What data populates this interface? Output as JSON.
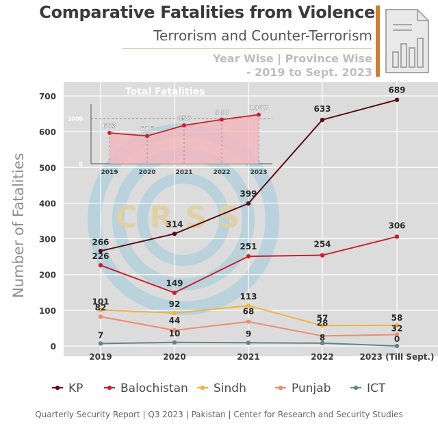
{
  "header": {
    "title": "Comparative Fatalities from Violence",
    "subtitle": "Terrorism and Counter-Terrorism",
    "scope_line1": "Year Wise | Province Wise",
    "scope_line2": "- 2019 to Sept. 2023"
  },
  "footer": {
    "text": "Quarterly Security Report | Q3 2023 | Pakistan | Center for Research and Security Studies"
  },
  "watermark": {
    "text": "CRSS"
  },
  "chart_data": [
    {
      "type": "line",
      "ylabel": "Number of Fatalities",
      "categories": [
        "2019",
        "2020",
        "2021",
        "2022",
        "2023 (Till Sept.)"
      ],
      "ylim": [
        0,
        700
      ],
      "yticks": [
        0,
        100,
        200,
        300,
        400,
        500,
        600,
        700
      ],
      "grid": true,
      "legend_position": "bottom",
      "series": [
        {
          "name": "KP",
          "color": "#5a0f14",
          "values": [
            266,
            314,
            399,
            633,
            689
          ]
        },
        {
          "name": "Balochistan",
          "color": "#cc1f2e",
          "values": [
            226,
            149,
            251,
            254,
            306
          ]
        },
        {
          "name": "Sindh",
          "color": "#f2b23c",
          "values": [
            101,
            92,
            113,
            57,
            58
          ]
        },
        {
          "name": "Punjab",
          "color": "#f08a72",
          "values": [
            82,
            44,
            68,
            28,
            32
          ]
        },
        {
          "name": "ICT",
          "color": "#5d878c",
          "values": [
            7,
            10,
            9,
            8,
            0
          ]
        }
      ]
    },
    {
      "type": "area",
      "title": "Total Fatalities",
      "categories": [
        "2019",
        "2020",
        "2021",
        "2022",
        "2023"
      ],
      "values": [
        683,
        616,
        850,
        980,
        1087
      ],
      "ylim": [
        0,
        1200
      ],
      "yticks": [
        0,
        1000
      ],
      "color": "#cc1f2e",
      "fill": "#f4b6bc"
    }
  ]
}
